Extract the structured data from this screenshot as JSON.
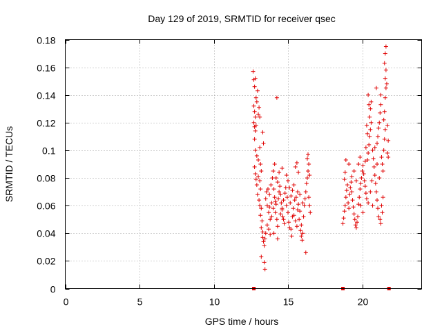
{
  "chart_data": {
    "type": "scatter",
    "title": "Day 129 of 2019, SRMTID for receiver qsec",
    "xlabel": "GPS time / hours",
    "ylabel": "SRMTID / TECUs",
    "xlim": [
      0,
      24
    ],
    "ylim": [
      0,
      0.18
    ],
    "x_ticks": [
      0,
      5,
      10,
      15,
      20
    ],
    "x_tick_labels": [
      "0",
      "5",
      "10",
      "15",
      "20"
    ],
    "y_ticks": [
      0,
      0.02,
      0.04,
      0.06,
      0.08,
      0.1,
      0.12,
      0.14,
      0.16,
      0.18
    ],
    "y_tick_labels": [
      "0",
      "0.02",
      "0.04",
      "0.06",
      "0.08",
      "0.1",
      "0.12",
      "0.14",
      "0.16",
      "0.18"
    ],
    "grid": true,
    "marker": "+",
    "color": "#e00000",
    "zero_markers_x": [
      12.7,
      18.7,
      21.8
    ],
    "series": [
      {
        "name": "SRMTID",
        "points": [
          [
            12.65,
            0.157
          ],
          [
            12.7,
            0.151
          ],
          [
            12.75,
            0.146
          ],
          [
            12.8,
            0.152
          ],
          [
            12.85,
            0.138
          ],
          [
            12.7,
            0.132
          ],
          [
            12.75,
            0.128
          ],
          [
            12.8,
            0.124
          ],
          [
            12.9,
            0.135
          ],
          [
            12.95,
            0.143
          ],
          [
            13.0,
            0.126
          ],
          [
            13.1,
            0.124
          ],
          [
            13.05,
            0.131
          ],
          [
            12.7,
            0.12
          ],
          [
            12.75,
            0.117
          ],
          [
            12.8,
            0.114
          ],
          [
            12.85,
            0.118
          ],
          [
            12.75,
            0.108
          ],
          [
            12.8,
            0.1
          ],
          [
            12.9,
            0.096
          ],
          [
            13.0,
            0.093
          ],
          [
            12.75,
            0.088
          ],
          [
            12.8,
            0.083
          ],
          [
            12.85,
            0.079
          ],
          [
            12.9,
            0.075
          ],
          [
            13.0,
            0.081
          ],
          [
            13.1,
            0.078
          ],
          [
            13.15,
            0.072
          ],
          [
            12.95,
            0.068
          ],
          [
            13.05,
            0.064
          ],
          [
            13.1,
            0.06
          ],
          [
            13.2,
            0.058
          ],
          [
            13.15,
            0.053
          ],
          [
            13.25,
            0.049
          ],
          [
            13.2,
            0.044
          ],
          [
            13.3,
            0.041
          ],
          [
            13.3,
            0.037
          ],
          [
            13.35,
            0.034
          ],
          [
            13.4,
            0.031
          ],
          [
            13.45,
            0.036
          ],
          [
            13.5,
            0.04
          ],
          [
            13.4,
            0.019
          ],
          [
            13.45,
            0.014
          ],
          [
            13.2,
            0.023
          ],
          [
            13.3,
            0.113
          ],
          [
            13.35,
            0.105
          ],
          [
            13.1,
            0.102
          ],
          [
            13.15,
            0.09
          ],
          [
            13.2,
            0.085
          ],
          [
            13.5,
            0.065
          ],
          [
            13.6,
            0.06
          ],
          [
            13.7,
            0.055
          ],
          [
            13.8,
            0.05
          ],
          [
            13.55,
            0.07
          ],
          [
            13.65,
            0.072
          ],
          [
            13.75,
            0.068
          ],
          [
            13.9,
            0.062
          ],
          [
            14.0,
            0.058
          ],
          [
            13.85,
            0.075
          ],
          [
            13.95,
            0.08
          ],
          [
            14.05,
            0.072
          ],
          [
            14.1,
            0.066
          ],
          [
            14.2,
            0.061
          ],
          [
            14.15,
            0.055
          ],
          [
            14.25,
            0.05
          ],
          [
            14.3,
            0.045
          ],
          [
            14.35,
            0.065
          ],
          [
            14.4,
            0.07
          ],
          [
            14.5,
            0.068
          ],
          [
            14.45,
            0.074
          ],
          [
            14.55,
            0.062
          ],
          [
            14.6,
            0.057
          ],
          [
            14.65,
            0.052
          ],
          [
            14.7,
            0.064
          ],
          [
            14.8,
            0.069
          ],
          [
            14.85,
            0.073
          ],
          [
            14.9,
            0.06
          ],
          [
            15.0,
            0.055
          ],
          [
            15.05,
            0.048
          ],
          [
            15.1,
            0.044
          ],
          [
            15.15,
            0.062
          ],
          [
            15.2,
            0.067
          ],
          [
            15.3,
            0.071
          ],
          [
            15.35,
            0.058
          ],
          [
            15.4,
            0.053
          ],
          [
            15.5,
            0.049
          ],
          [
            15.6,
            0.045
          ],
          [
            15.55,
            0.066
          ],
          [
            15.65,
            0.07
          ],
          [
            15.7,
            0.061
          ],
          [
            15.8,
            0.056
          ],
          [
            15.85,
            0.042
          ],
          [
            15.9,
            0.038
          ],
          [
            15.95,
            0.035
          ],
          [
            16.0,
            0.04
          ],
          [
            16.05,
            0.052
          ],
          [
            16.1,
            0.06
          ],
          [
            16.15,
            0.065
          ],
          [
            16.2,
            0.07
          ],
          [
            16.25,
            0.076
          ],
          [
            16.3,
            0.08
          ],
          [
            16.35,
            0.085
          ],
          [
            16.4,
            0.09
          ],
          [
            16.3,
            0.094
          ],
          [
            16.35,
            0.097
          ],
          [
            16.45,
            0.082
          ],
          [
            16.4,
            0.066
          ],
          [
            16.45,
            0.06
          ],
          [
            16.5,
            0.055
          ],
          [
            16.2,
            0.026
          ],
          [
            13.6,
            0.046
          ],
          [
            13.7,
            0.043
          ],
          [
            13.8,
            0.039
          ],
          [
            13.9,
            0.052
          ],
          [
            14.0,
            0.085
          ],
          [
            14.1,
            0.09
          ],
          [
            14.2,
            0.08
          ],
          [
            14.25,
            0.138
          ],
          [
            14.3,
            0.077
          ],
          [
            14.4,
            0.084
          ],
          [
            14.6,
            0.087
          ],
          [
            14.7,
            0.05
          ],
          [
            14.75,
            0.047
          ],
          [
            14.9,
            0.082
          ],
          [
            15.0,
            0.078
          ],
          [
            15.2,
            0.043
          ],
          [
            15.25,
            0.038
          ],
          [
            15.4,
            0.075
          ],
          [
            15.5,
            0.088
          ],
          [
            15.6,
            0.091
          ],
          [
            15.7,
            0.084
          ],
          [
            15.75,
            0.05
          ],
          [
            15.9,
            0.046
          ],
          [
            16.0,
            0.062
          ],
          [
            14.05,
            0.04
          ],
          [
            14.3,
            0.036
          ],
          [
            14.6,
            0.058
          ],
          [
            15.1,
            0.073
          ],
          [
            15.45,
            0.064
          ],
          [
            15.8,
            0.068
          ],
          [
            13.75,
            0.059
          ],
          [
            14.15,
            0.063
          ],
          [
            14.5,
            0.054
          ],
          [
            14.95,
            0.066
          ],
          [
            15.3,
            0.052
          ],
          [
            15.65,
            0.057
          ],
          [
            18.7,
            0.047
          ],
          [
            18.75,
            0.051
          ],
          [
            18.8,
            0.056
          ],
          [
            18.85,
            0.06
          ],
          [
            18.9,
            0.066
          ],
          [
            18.95,
            0.071
          ],
          [
            19.0,
            0.075
          ],
          [
            18.8,
            0.079
          ],
          [
            18.85,
            0.084
          ],
          [
            18.9,
            0.093
          ],
          [
            19.05,
            0.062
          ],
          [
            19.1,
            0.058
          ],
          [
            19.15,
            0.068
          ],
          [
            19.2,
            0.073
          ],
          [
            19.25,
            0.077
          ],
          [
            19.3,
            0.081
          ],
          [
            19.35,
            0.064
          ],
          [
            19.4,
            0.059
          ],
          [
            19.45,
            0.054
          ],
          [
            19.5,
            0.05
          ],
          [
            19.55,
            0.046
          ],
          [
            19.6,
            0.044
          ],
          [
            19.65,
            0.048
          ],
          [
            19.7,
            0.052
          ],
          [
            19.75,
            0.061
          ],
          [
            19.8,
            0.066
          ],
          [
            19.85,
            0.072
          ],
          [
            19.9,
            0.076
          ],
          [
            19.95,
            0.08
          ],
          [
            20.0,
            0.085
          ],
          [
            20.05,
            0.089
          ],
          [
            20.1,
            0.083
          ],
          [
            20.15,
            0.078
          ],
          [
            20.2,
            0.074
          ],
          [
            20.25,
            0.069
          ],
          [
            20.3,
            0.065
          ],
          [
            20.35,
            0.093
          ],
          [
            20.4,
            0.098
          ],
          [
            20.45,
            0.104
          ],
          [
            20.5,
            0.11
          ],
          [
            20.55,
            0.115
          ],
          [
            20.6,
            0.12
          ],
          [
            20.5,
            0.124
          ],
          [
            20.55,
            0.13
          ],
          [
            20.6,
            0.135
          ],
          [
            20.4,
            0.14
          ],
          [
            20.45,
            0.133
          ],
          [
            20.3,
            0.118
          ],
          [
            20.35,
            0.112
          ],
          [
            20.7,
            0.1
          ],
          [
            20.75,
            0.094
          ],
          [
            20.8,
            0.088
          ],
          [
            20.85,
            0.082
          ],
          [
            20.9,
            0.076
          ],
          [
            20.95,
            0.07
          ],
          [
            21.0,
            0.064
          ],
          [
            21.05,
            0.058
          ],
          [
            21.1,
            0.052
          ],
          [
            21.0,
            0.105
          ],
          [
            21.05,
            0.11
          ],
          [
            21.1,
            0.116
          ],
          [
            21.15,
            0.12
          ],
          [
            21.2,
            0.127
          ],
          [
            21.25,
            0.133
          ],
          [
            21.3,
            0.095
          ],
          [
            21.35,
            0.09
          ],
          [
            21.4,
            0.085
          ],
          [
            21.45,
            0.1
          ],
          [
            21.5,
            0.108
          ],
          [
            21.55,
            0.115
          ],
          [
            21.45,
            0.122
          ],
          [
            21.5,
            0.128
          ],
          [
            21.55,
            0.138
          ],
          [
            21.6,
            0.145
          ],
          [
            21.55,
            0.152
          ],
          [
            21.6,
            0.158
          ],
          [
            21.5,
            0.163
          ],
          [
            21.55,
            0.17
          ],
          [
            21.6,
            0.175
          ],
          [
            21.65,
            0.148
          ],
          [
            21.7,
            0.118
          ],
          [
            21.75,
            0.107
          ],
          [
            21.7,
            0.098
          ],
          [
            21.75,
            0.095
          ],
          [
            21.3,
            0.06
          ],
          [
            21.35,
            0.055
          ],
          [
            21.2,
            0.05
          ],
          [
            21.25,
            0.047
          ],
          [
            19.1,
            0.09
          ],
          [
            19.3,
            0.07
          ],
          [
            19.45,
            0.085
          ],
          [
            19.6,
            0.078
          ],
          [
            19.75,
            0.09
          ],
          [
            19.9,
            0.06
          ],
          [
            20.05,
            0.055
          ],
          [
            20.2,
            0.092
          ],
          [
            20.4,
            0.062
          ],
          [
            20.55,
            0.07
          ],
          [
            20.7,
            0.06
          ],
          [
            20.85,
            0.102
          ],
          [
            21.0,
            0.09
          ],
          [
            21.15,
            0.08
          ],
          [
            20.95,
            0.145
          ],
          [
            21.25,
            0.14
          ],
          [
            20.65,
            0.078
          ],
          [
            21.4,
            0.066
          ],
          [
            20.25,
            0.102
          ],
          [
            19.85,
            0.095
          ]
        ]
      }
    ]
  }
}
